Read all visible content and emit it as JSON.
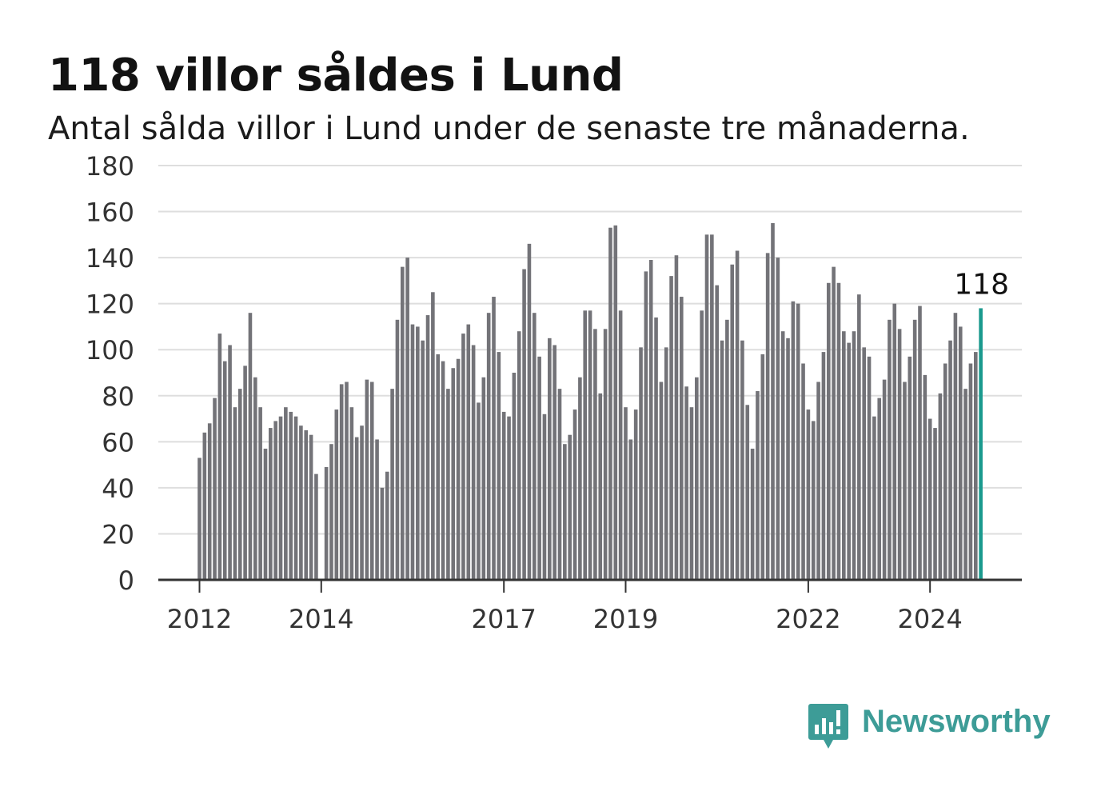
{
  "title": "118 villor såldes i Lund",
  "subtitle": "Antal sålda villor i Lund under de senaste tre månaderna.",
  "brand": {
    "name": "Newsworthy",
    "color": "#3d9c97"
  },
  "chart_data": {
    "type": "bar",
    "title": "118 villor såldes i Lund",
    "subtitle": "Antal sålda villor i Lund under de senaste tre månaderna.",
    "xlabel": "",
    "ylabel": "",
    "ylim": [
      0,
      180
    ],
    "yticks": [
      0,
      20,
      40,
      60,
      80,
      100,
      120,
      140,
      160,
      180
    ],
    "xtick_labels": [
      {
        "label": "2012",
        "month_index": 0
      },
      {
        "label": "2014",
        "month_index": 24
      },
      {
        "label": "2017",
        "month_index": 60
      },
      {
        "label": "2019",
        "month_index": 84
      },
      {
        "label": "2022",
        "month_index": 120
      },
      {
        "label": "2024",
        "month_index": 144
      }
    ],
    "grid": true,
    "bar_color": "#737378",
    "highlight_color": "#1a9a8e",
    "highlight_label": "118",
    "series": [
      {
        "values": [
          53,
          64,
          68,
          79,
          107,
          95,
          102,
          75,
          83,
          93,
          116,
          88,
          75,
          57,
          66,
          69,
          71,
          75,
          73,
          71,
          67,
          65,
          63,
          46,
          0,
          49,
          59,
          74,
          85,
          86,
          75,
          62,
          67,
          87,
          86,
          61,
          40,
          47,
          83,
          113,
          136,
          140,
          111,
          110,
          104,
          115,
          125,
          98,
          95,
          83,
          92,
          96,
          107,
          111,
          102,
          77,
          88,
          116,
          123,
          99,
          73,
          71,
          90,
          108,
          135,
          146,
          116,
          97,
          72,
          105,
          102,
          83,
          59,
          63,
          74,
          88,
          117,
          117,
          109,
          81,
          109,
          153,
          154,
          117,
          75,
          61,
          74,
          101,
          134,
          139,
          114,
          86,
          101,
          132,
          141,
          123,
          84,
          75,
          88,
          117,
          150,
          150,
          128,
          104,
          113,
          137,
          143,
          104,
          76,
          57,
          82,
          98,
          142,
          155,
          140,
          108,
          105,
          121,
          120,
          94,
          74,
          69,
          86,
          99,
          129,
          136,
          129,
          108,
          103,
          108,
          124,
          101,
          97,
          71,
          79,
          87,
          113,
          120,
          109,
          86,
          97,
          113,
          119,
          89,
          70,
          66,
          81,
          94,
          104,
          116,
          110,
          83,
          94,
          99,
          118
        ]
      }
    ]
  }
}
